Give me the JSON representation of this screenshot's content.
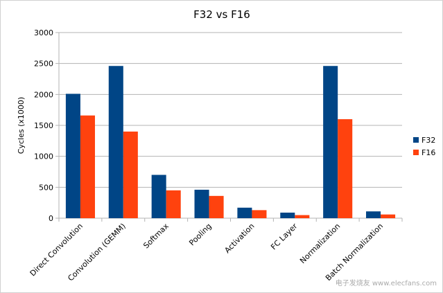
{
  "chart_data": {
    "type": "bar",
    "title": "F32 vs F16",
    "y_label": "Cycles (x1000)",
    "categories": [
      "Direct Convolution",
      "Convolution (GEMM)",
      "Softmax",
      "Pooling",
      "Activation",
      "FC Layer",
      "Normalization",
      "Batch Normalization"
    ],
    "series": [
      {
        "name": "F32",
        "color": "#004586",
        "values": [
          2010,
          2460,
          700,
          460,
          170,
          90,
          2460,
          110
        ]
      },
      {
        "name": "F16",
        "color": "#ff420e",
        "values": [
          1660,
          1400,
          450,
          360,
          130,
          50,
          1600,
          60
        ]
      }
    ],
    "ylim": [
      0,
      3000
    ],
    "yticks": [
      0,
      500,
      1000,
      1500,
      2000,
      2500,
      3000
    ],
    "grid": true,
    "legend": "right",
    "watermark": "电子发烧友 www.elecfans.com"
  }
}
